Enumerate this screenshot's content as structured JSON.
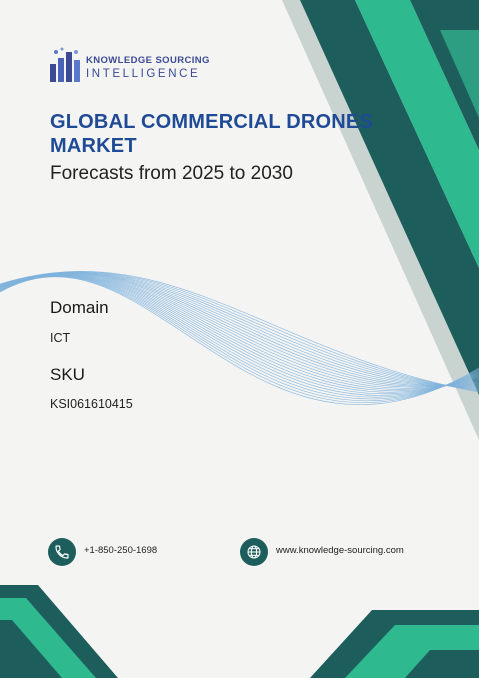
{
  "logo": {
    "line1": "KNOWLEDGE SOURCING",
    "line2": "INTELLIGENCE"
  },
  "report": {
    "title": "GLOBAL COMMERCIAL DRONES MARKET",
    "subtitle": "Forecasts from 2025 to 2030"
  },
  "details": {
    "domain_label": "Domain",
    "domain_value": "ICT",
    "sku_label": "SKU",
    "sku_value": "KSI061610415"
  },
  "contact": {
    "phone": "+1-850-250-1698",
    "website": "www.knowledge-sourcing.com"
  },
  "colors": {
    "dark_teal": "#1d5e5c",
    "green": "#2eb98f",
    "brand_blue": "#1f4a96",
    "wave_blue": "#7fb3dc"
  },
  "icons": {
    "phone": "phone-icon",
    "website": "globe-icon"
  }
}
